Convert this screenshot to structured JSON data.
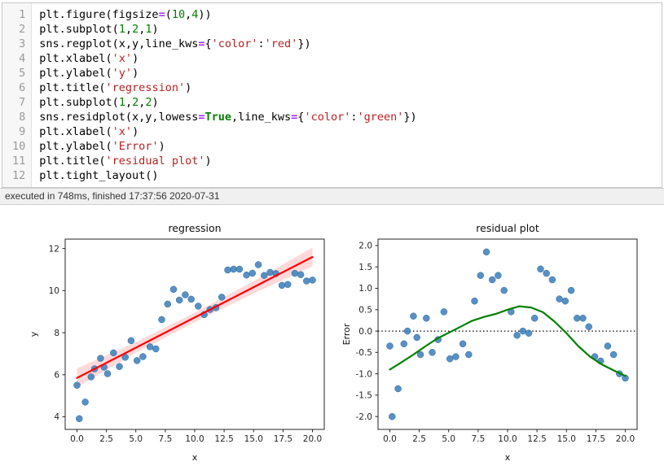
{
  "editor": {
    "lines": [
      {
        "no": "1",
        "tokens": [
          [
            "c",
            "plt.figure(figsize"
          ],
          [
            "o",
            "="
          ],
          [
            "c",
            "("
          ],
          [
            "n",
            "10"
          ],
          [
            "c",
            ","
          ],
          [
            "n",
            "4"
          ],
          [
            "c",
            "))"
          ]
        ]
      },
      {
        "no": "2",
        "tokens": [
          [
            "c",
            "plt.subplot("
          ],
          [
            "n",
            "1"
          ],
          [
            "c",
            ","
          ],
          [
            "n",
            "2"
          ],
          [
            "c",
            ","
          ],
          [
            "n",
            "1"
          ],
          [
            "c",
            ")"
          ]
        ]
      },
      {
        "no": "3",
        "tokens": [
          [
            "c",
            "sns.regplot(x,y,line_kws"
          ],
          [
            "o",
            "="
          ],
          [
            "c",
            "{"
          ],
          [
            "s",
            "'color'"
          ],
          [
            "c",
            ":"
          ],
          [
            "s",
            "'red'"
          ],
          [
            "c",
            "})"
          ]
        ]
      },
      {
        "no": "4",
        "tokens": [
          [
            "c",
            "plt.xlabel("
          ],
          [
            "s",
            "'x'"
          ],
          [
            "c",
            ")"
          ]
        ]
      },
      {
        "no": "5",
        "tokens": [
          [
            "c",
            "plt.ylabel("
          ],
          [
            "s",
            "'y'"
          ],
          [
            "c",
            ")"
          ]
        ]
      },
      {
        "no": "6",
        "tokens": [
          [
            "c",
            "plt.title("
          ],
          [
            "s",
            "'regression'"
          ],
          [
            "c",
            ")"
          ]
        ]
      },
      {
        "no": "7",
        "tokens": [
          [
            "c",
            "plt.subplot("
          ],
          [
            "n",
            "1"
          ],
          [
            "c",
            ","
          ],
          [
            "n",
            "2"
          ],
          [
            "c",
            ","
          ],
          [
            "n",
            "2"
          ],
          [
            "c",
            ")"
          ]
        ]
      },
      {
        "no": "8",
        "tokens": [
          [
            "c",
            "sns.residplot(x,y,lowess"
          ],
          [
            "o",
            "="
          ],
          [
            "k",
            "True"
          ],
          [
            "c",
            ",line_kws"
          ],
          [
            "o",
            "="
          ],
          [
            "c",
            "{"
          ],
          [
            "s",
            "'color'"
          ],
          [
            "c",
            ":"
          ],
          [
            "s",
            "'green'"
          ],
          [
            "c",
            "})"
          ]
        ]
      },
      {
        "no": "9",
        "tokens": [
          [
            "c",
            "plt.xlabel("
          ],
          [
            "s",
            "'x'"
          ],
          [
            "c",
            ")"
          ]
        ]
      },
      {
        "no": "10",
        "tokens": [
          [
            "c",
            "plt.ylabel("
          ],
          [
            "s",
            "'Error'"
          ],
          [
            "c",
            ")"
          ]
        ]
      },
      {
        "no": "11",
        "tokens": [
          [
            "c",
            "plt.title("
          ],
          [
            "s",
            "'residual plot'"
          ],
          [
            "c",
            ")"
          ]
        ]
      },
      {
        "no": "12",
        "tokens": [
          [
            "c",
            "plt.tight_layout()"
          ]
        ]
      }
    ]
  },
  "status": {
    "text": "executed in 748ms, finished 17:37:56 2020-07-31"
  },
  "colors": {
    "regression_line": "#ff0000",
    "lowess_line": "#008000",
    "scatter_point": "#3b7cb8",
    "confidence_band": "rgba(255,0,0,0.15)"
  },
  "chart_data": [
    {
      "type": "scatter",
      "title": "regression",
      "xlabel": "x",
      "ylabel": "y",
      "xlim": [
        -1,
        21
      ],
      "ylim": [
        3.4,
        12.45
      ],
      "grid": false,
      "xticks": {
        "values": [
          0,
          2.5,
          5,
          7.5,
          10,
          12.5,
          15,
          17.5,
          20
        ],
        "labels": [
          "0.0",
          "2.5",
          "5.0",
          "7.5",
          "10.0",
          "12.5",
          "15.0",
          "17.5",
          "20.0"
        ]
      },
      "yticks": {
        "values": [
          4,
          6,
          8,
          10,
          12
        ],
        "labels": [
          "4",
          "6",
          "8",
          "10",
          "12"
        ]
      },
      "point_color": "#3b7cb8",
      "x": [
        0.0,
        0.2,
        0.7,
        1.2,
        1.5,
        2.0,
        2.3,
        2.6,
        3.1,
        3.6,
        4.1,
        4.6,
        5.1,
        5.6,
        6.2,
        6.7,
        7.2,
        7.7,
        8.2,
        8.7,
        9.2,
        9.7,
        10.3,
        10.8,
        11.3,
        11.8,
        12.3,
        12.8,
        13.3,
        13.8,
        14.4,
        14.9,
        15.4,
        15.9,
        16.4,
        16.9,
        17.4,
        17.9,
        18.5,
        19.0,
        19.5,
        20.0
      ],
      "y": [
        5.5,
        3.91,
        4.7,
        5.9,
        6.28,
        6.78,
        6.36,
        6.05,
        7.04,
        6.39,
        6.83,
        7.62,
        6.67,
        6.86,
        7.33,
        7.23,
        8.62,
        9.36,
        10.06,
        9.55,
        9.8,
        9.59,
        9.26,
        8.86,
        9.1,
        9.19,
        9.69,
        10.98,
        11.02,
        11.02,
        10.74,
        10.83,
        11.23,
        10.72,
        10.87,
        10.81,
        10.25,
        10.29,
        10.82,
        10.76,
        10.46,
        10.5
      ],
      "confidence_band": {
        "x": [
          0,
          5,
          10,
          15,
          20
        ],
        "upper": [
          6.3,
          7.55,
          8.95,
          10.45,
          12.05
        ],
        "lower": [
          5.4,
          7.05,
          8.5,
          9.87,
          11.15
        ],
        "color": "rgba(255,0,0,0.15)"
      },
      "lines": [
        {
          "name": "regression-line",
          "color": "#ff0000",
          "x": [
            0,
            20
          ],
          "y": [
            5.85,
            11.6
          ]
        }
      ]
    },
    {
      "type": "scatter",
      "title": "residual plot",
      "xlabel": "x",
      "ylabel": "Error",
      "xlim": [
        -1,
        21
      ],
      "ylim": [
        -2.3,
        2.15
      ],
      "grid": false,
      "xticks": {
        "values": [
          0,
          2.5,
          5,
          7.5,
          10,
          12.5,
          15,
          17.5,
          20
        ],
        "labels": [
          "0.0",
          "2.5",
          "5.0",
          "7.5",
          "10.0",
          "12.5",
          "15.0",
          "17.5",
          "20.0"
        ]
      },
      "yticks": {
        "values": [
          -2,
          -1.5,
          -1,
          -0.5,
          0,
          0.5,
          1,
          1.5,
          2
        ],
        "labels": [
          "-2.0",
          "-1.5",
          "-1.0",
          "-0.5",
          "0.0",
          "0.5",
          "1.0",
          "1.5",
          "2.0"
        ]
      },
      "point_color": "#3b7cb8",
      "x": [
        0.0,
        0.2,
        0.7,
        1.2,
        1.5,
        2.0,
        2.3,
        2.6,
        3.1,
        3.6,
        4.1,
        4.6,
        5.1,
        5.6,
        6.2,
        6.7,
        7.2,
        7.7,
        8.2,
        8.7,
        9.2,
        9.7,
        10.3,
        10.8,
        11.3,
        11.8,
        12.3,
        12.8,
        13.3,
        13.8,
        14.4,
        14.9,
        15.4,
        15.9,
        16.4,
        16.9,
        17.4,
        17.9,
        18.5,
        19.0,
        19.5,
        20.0
      ],
      "y": [
        -0.35,
        -2.0,
        -1.35,
        -0.3,
        0.0,
        0.35,
        -0.15,
        -0.55,
        0.3,
        -0.5,
        -0.2,
        0.45,
        -0.65,
        -0.6,
        -0.3,
        -0.55,
        0.7,
        1.3,
        1.85,
        1.2,
        1.3,
        0.95,
        0.45,
        -0.1,
        0.0,
        -0.05,
        0.3,
        1.45,
        1.35,
        1.2,
        0.75,
        0.7,
        0.95,
        0.3,
        0.3,
        0.1,
        -0.6,
        -0.7,
        -0.35,
        -0.55,
        -1.0,
        -1.1
      ],
      "zero_line": {
        "y": 0,
        "color": "#000000",
        "style": "dotted"
      },
      "lines": [
        {
          "name": "lowess-line",
          "color": "#008000",
          "x": [
            0,
            1,
            2,
            3,
            4,
            5,
            6,
            7,
            8,
            9,
            10,
            11,
            12,
            13,
            14,
            15,
            16,
            17,
            18,
            19,
            20
          ],
          "y": [
            -0.9,
            -0.73,
            -0.55,
            -0.36,
            -0.18,
            -0.04,
            0.1,
            0.24,
            0.33,
            0.4,
            0.5,
            0.58,
            0.55,
            0.44,
            0.22,
            -0.05,
            -0.35,
            -0.6,
            -0.78,
            -0.92,
            -1.05
          ]
        }
      ]
    }
  ]
}
